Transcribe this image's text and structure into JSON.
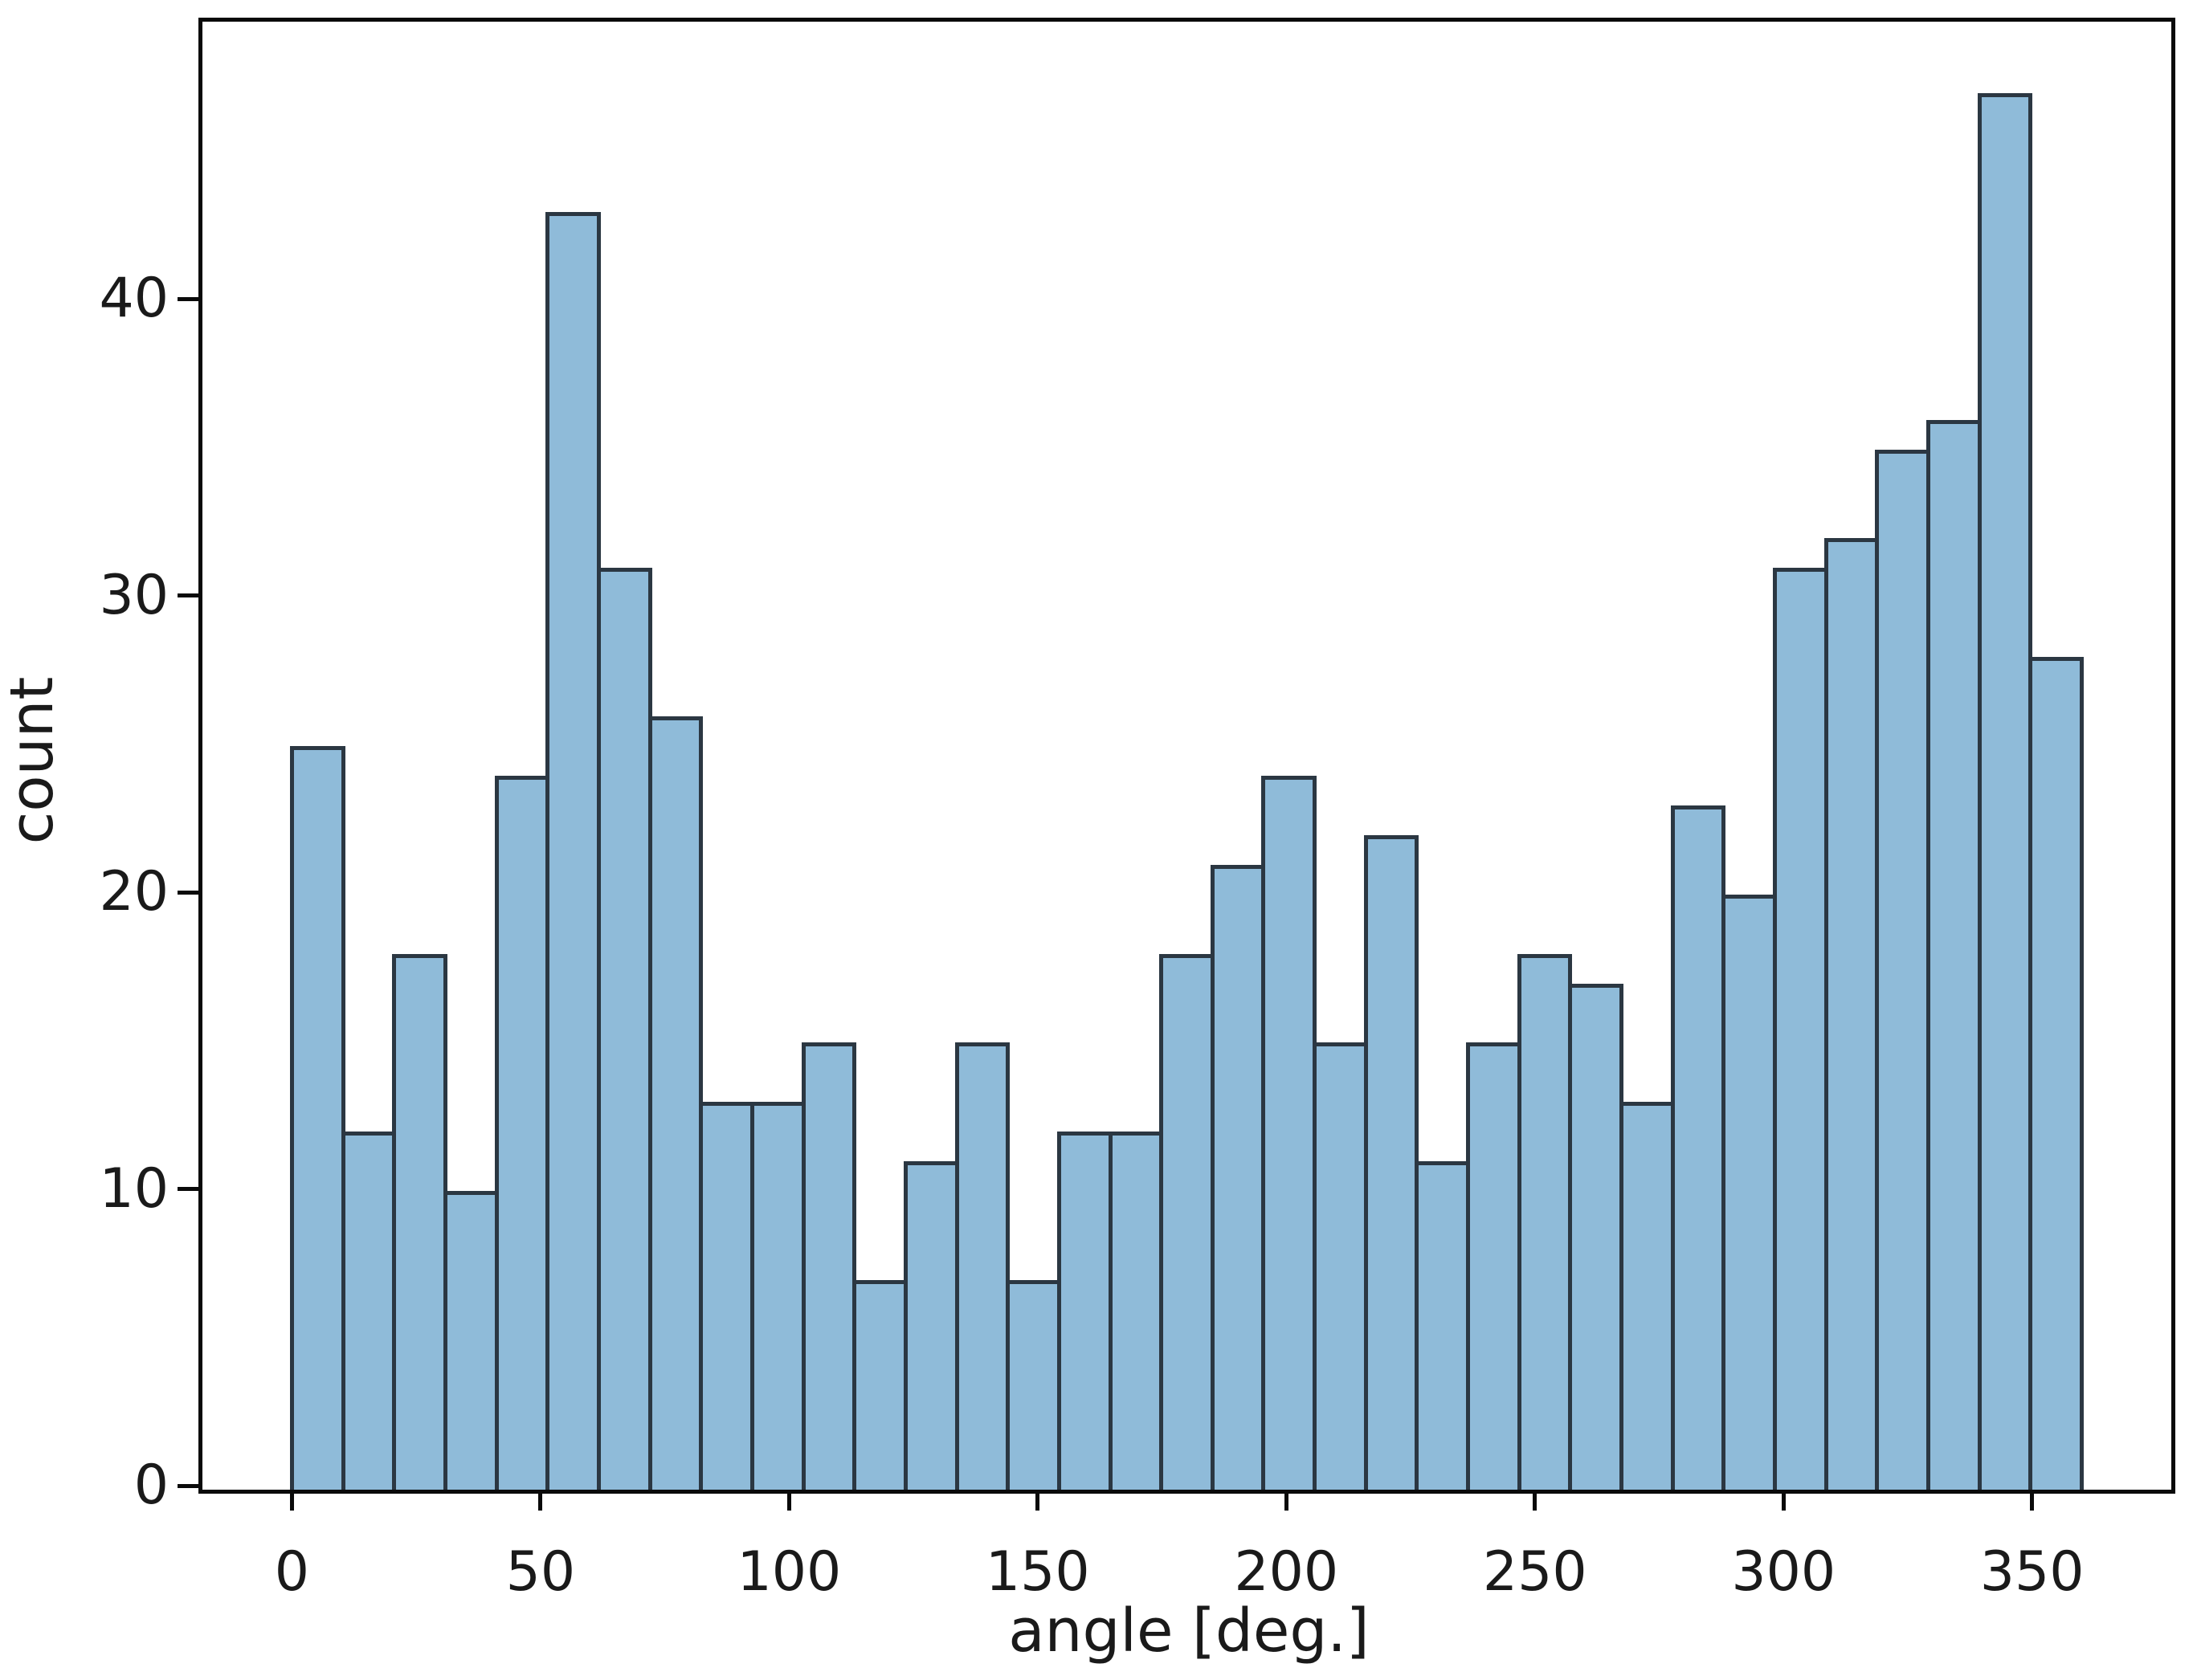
{
  "chart_data": {
    "type": "bar",
    "subtype": "histogram",
    "title": "",
    "xlabel": "angle [deg.]",
    "ylabel": "count",
    "bin_start_deg": 0,
    "bin_end_deg": 360,
    "bin_count": 35,
    "bin_width_deg": 10.2857,
    "values": [
      25,
      12,
      18,
      10,
      24,
      43,
      31,
      26,
      13,
      13,
      15,
      7,
      11,
      15,
      7,
      12,
      12,
      18,
      21,
      24,
      15,
      22,
      11,
      15,
      18,
      17,
      13,
      23,
      20,
      31,
      32,
      35,
      36,
      47,
      28
    ],
    "total_count": 720,
    "x_ticks": [
      0,
      50,
      100,
      150,
      200,
      250,
      300,
      350
    ],
    "y_ticks": [
      0,
      10,
      20,
      30,
      40
    ],
    "xlim": [
      -18,
      378
    ],
    "ylim": [
      0,
      49.35
    ],
    "legend": "none",
    "grid": false,
    "colors": {
      "bar_fill": "#8fbbd9",
      "bar_edge": "#2b3742",
      "spine": "#0a0a0a",
      "text": "#1a1a1a",
      "background": "#ffffff"
    }
  }
}
